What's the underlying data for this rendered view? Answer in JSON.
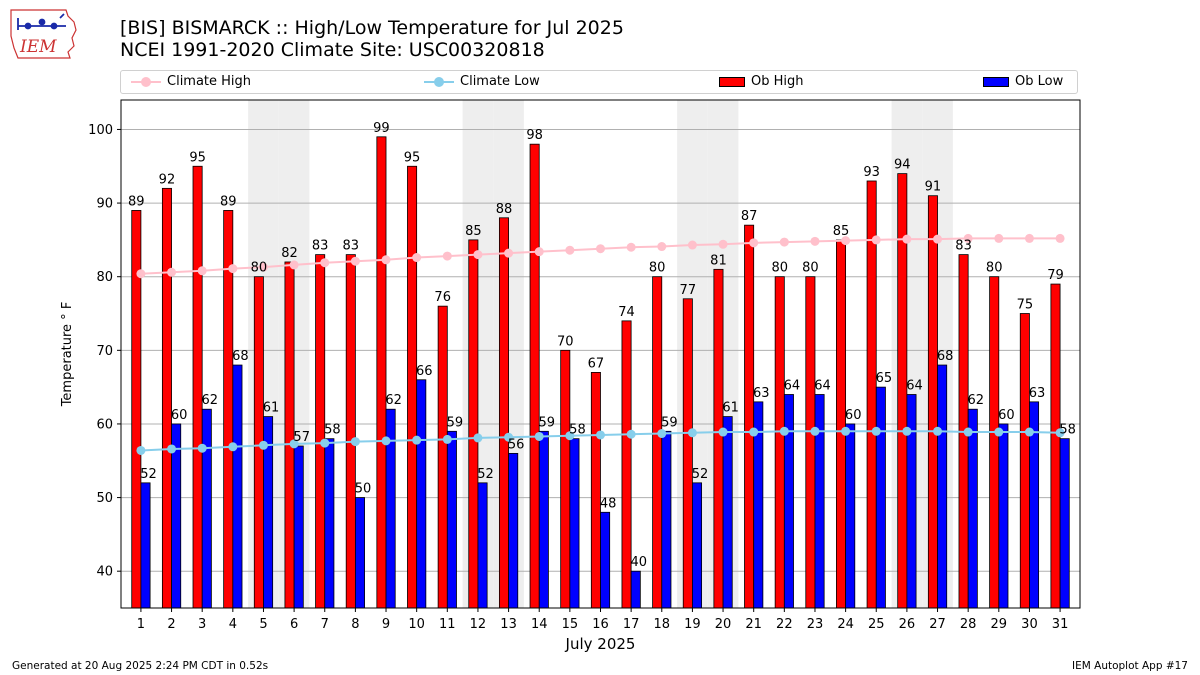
{
  "header": {
    "title_line1": "[BIS] BISMARCK :: High/Low Temperature for Jul 2025",
    "title_line2": "NCEI 1991-2020 Climate Site: USC00320818"
  },
  "logo": {
    "text": "IEM",
    "icon": "iowa-state-outline-logo-icon"
  },
  "legend": {
    "climate_high": "Climate High",
    "climate_low": "Climate Low",
    "ob_high": "Ob High",
    "ob_low": "Ob Low"
  },
  "footer": {
    "left": "Generated at 20 Aug 2025 2:24 PM CDT in 0.52s",
    "right": "IEM Autoplot App #17"
  },
  "chart_data": {
    "type": "bar",
    "xlabel": "July 2025",
    "ylabel": "Temperature ° F",
    "ylim": [
      35,
      104
    ],
    "yticks": [
      40,
      50,
      60,
      70,
      80,
      90,
      100
    ],
    "grid": "horizontal",
    "legend_position": "top",
    "weekend_shading_days": [
      5,
      6,
      12,
      13,
      19,
      20,
      26,
      27
    ],
    "categories": [
      "1",
      "2",
      "3",
      "4",
      "5",
      "6",
      "7",
      "8",
      "9",
      "10",
      "11",
      "12",
      "13",
      "14",
      "15",
      "16",
      "17",
      "18",
      "19",
      "20",
      "21",
      "22",
      "23",
      "24",
      "25",
      "26",
      "27",
      "28",
      "29",
      "30",
      "31"
    ],
    "series": [
      {
        "name": "Ob High",
        "kind": "bar",
        "color": "#ff0000",
        "values": [
          89,
          92,
          95,
          89,
          80,
          82,
          83,
          83,
          99,
          95,
          76,
          85,
          88,
          98,
          70,
          67,
          74,
          80,
          77,
          81,
          87,
          80,
          80,
          85,
          93,
          94,
          91,
          83,
          80,
          75,
          79
        ]
      },
      {
        "name": "Ob Low",
        "kind": "bar",
        "color": "#0000ff",
        "values": [
          52,
          60,
          62,
          68,
          61,
          57,
          58,
          50,
          62,
          66,
          59,
          52,
          56,
          59,
          58,
          48,
          40,
          59,
          52,
          61,
          63,
          64,
          64,
          60,
          65,
          64,
          68,
          62,
          60,
          63,
          58
        ]
      },
      {
        "name": "Climate High",
        "kind": "line",
        "color": "#ffc0cb",
        "values": [
          80.4,
          80.6,
          80.8,
          81.1,
          81.3,
          81.6,
          81.9,
          82.1,
          82.3,
          82.6,
          82.8,
          83.0,
          83.2,
          83.4,
          83.6,
          83.8,
          84.0,
          84.1,
          84.3,
          84.4,
          84.6,
          84.7,
          84.8,
          84.9,
          85.0,
          85.1,
          85.1,
          85.2,
          85.2,
          85.2,
          85.2
        ]
      },
      {
        "name": "Climate Low",
        "kind": "line",
        "color": "#87ceeb",
        "values": [
          56.4,
          56.6,
          56.7,
          56.9,
          57.1,
          57.3,
          57.4,
          57.6,
          57.7,
          57.8,
          57.9,
          58.1,
          58.2,
          58.3,
          58.4,
          58.5,
          58.6,
          58.7,
          58.8,
          58.9,
          58.9,
          59.0,
          59.0,
          59.0,
          59.0,
          59.0,
          59.0,
          58.9,
          58.9,
          58.9,
          58.8
        ]
      }
    ]
  }
}
